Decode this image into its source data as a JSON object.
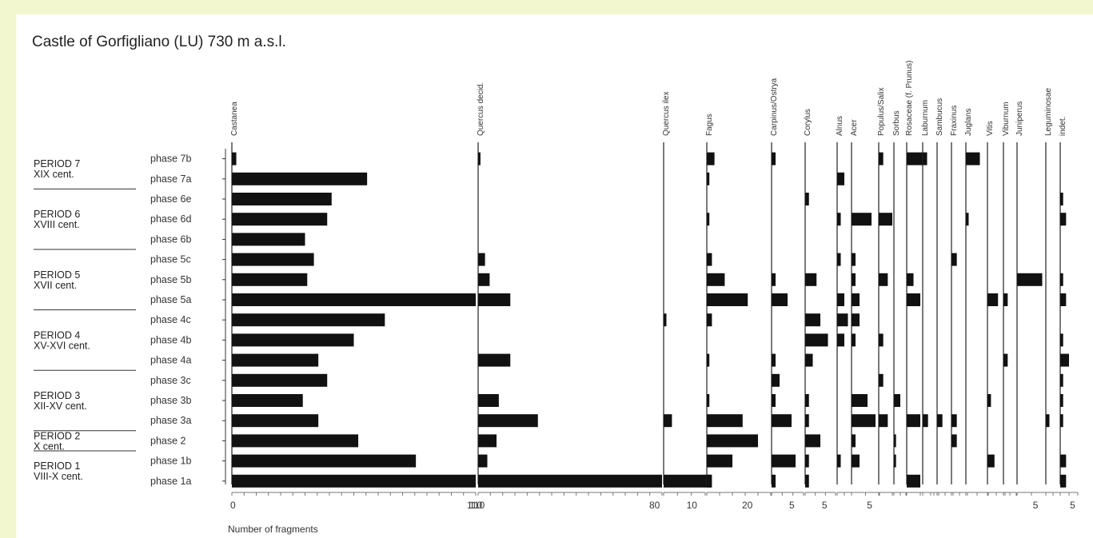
{
  "title": "Castle of Gorfigliano (LU) 730 m a.s.l.",
  "x_axis_title": "Number of fragments",
  "periods": [
    {
      "name": "PERIOD 7",
      "century": "XIX cent."
    },
    {
      "name": "PERIOD 6",
      "century": "XVIII cent."
    },
    {
      "name": "PERIOD 5",
      "century": "XVII cent."
    },
    {
      "name": "PERIOD 4",
      "century": "XV-XVI cent."
    },
    {
      "name": "PERIOD 3",
      "century": "XII-XV cent."
    },
    {
      "name": "PERIOD 2",
      "century": "X cent."
    },
    {
      "name": "PERIOD 1",
      "century": "VIII-X cent."
    }
  ],
  "chart_data": {
    "type": "bar",
    "orientation": "horizontal",
    "title": "Castle of Gorfigliano (LU) 730 m a.s.l.",
    "xlabel": "Number of fragments",
    "categories": [
      "phase 7b",
      "phase 7a",
      "phase 6e",
      "phase 6d",
      "phase 6b",
      "phase 5c",
      "phase 5b",
      "phase 5a",
      "phase 4c",
      "phase 4b",
      "phase 4a",
      "phase 3c",
      "phase 3b",
      "phase 3a",
      "phase 2",
      "phase 1b",
      "phase 1a"
    ],
    "series": [
      {
        "name": "Castanea",
        "max": 110,
        "ticks": [
          "0",
          "110"
        ],
        "values": [
          2,
          61,
          45,
          43,
          33,
          37,
          34,
          110,
          69,
          55,
          39,
          43,
          32,
          39,
          57,
          83,
          110
        ]
      },
      {
        "name": "Quercus decid.",
        "max": 80,
        "ticks": [
          "110",
          "80"
        ],
        "values": [
          1,
          0,
          0,
          0,
          0,
          3,
          5,
          14,
          0,
          0,
          14,
          0,
          9,
          26,
          8,
          4,
          80
        ]
      },
      {
        "name": "Quercus ilex",
        "max": 15,
        "ticks": [
          "10"
        ],
        "values": [
          0,
          0,
          0,
          0,
          0,
          0,
          0,
          0,
          1,
          0,
          0,
          0,
          0,
          3,
          0,
          0,
          17
        ]
      },
      {
        "name": "Fagus",
        "max": 25,
        "ticks": [
          "20"
        ],
        "values": [
          3,
          1,
          0,
          1,
          0,
          2,
          7,
          16,
          2,
          0,
          1,
          0,
          1,
          14,
          20,
          10,
          2
        ]
      },
      {
        "name": "Carpinus/Ostrya",
        "max": 8,
        "ticks": [
          "5"
        ],
        "values": [
          1,
          0,
          0,
          0,
          0,
          0,
          1,
          4,
          0,
          0,
          1,
          2,
          1,
          5,
          0,
          6,
          1
        ]
      },
      {
        "name": "Corylus",
        "max": 8,
        "ticks": [
          "5"
        ],
        "values": [
          0,
          0,
          1,
          0,
          0,
          0,
          3,
          0,
          4,
          6,
          2,
          0,
          1,
          1,
          4,
          1,
          1
        ]
      },
      {
        "name": "Alnus",
        "max": 4,
        "ticks": [],
        "values": [
          0,
          2,
          0,
          1,
          0,
          1,
          0,
          2,
          3,
          2,
          0,
          0,
          0,
          0,
          0,
          1,
          0
        ]
      },
      {
        "name": "Acer",
        "max": 7,
        "ticks": [
          "5"
        ],
        "values": [
          0,
          0,
          0,
          5,
          0,
          1,
          1,
          2,
          2,
          1,
          0,
          0,
          4,
          6,
          1,
          2,
          0
        ]
      },
      {
        "name": "Populus/Salix",
        "max": 6,
        "ticks": [],
        "values": [
          1,
          0,
          0,
          3,
          0,
          0,
          2,
          0,
          0,
          1,
          0,
          1,
          0,
          2,
          0,
          0,
          0
        ]
      },
      {
        "name": "Sorbus",
        "max": 6,
        "ticks": [],
        "values": [
          0,
          0,
          0,
          0,
          0,
          0,
          0,
          0,
          0,
          0,
          0,
          0,
          3,
          0,
          1,
          1,
          0
        ]
      },
      {
        "name": "Rosaceae (f. Prunus)",
        "max": 4,
        "ticks": [],
        "values": [
          3,
          0,
          0,
          0,
          0,
          0,
          1,
          2,
          0,
          0,
          0,
          0,
          0,
          2,
          0,
          0,
          2
        ]
      },
      {
        "name": "Laburnum",
        "max": 3,
        "ticks": [],
        "values": [
          0,
          0,
          0,
          0,
          0,
          0,
          0,
          0,
          0,
          0,
          0,
          0,
          0,
          1,
          0,
          0,
          0
        ]
      },
      {
        "name": "Sambucus",
        "max": 3,
        "ticks": [],
        "values": [
          0,
          0,
          0,
          0,
          0,
          0,
          0,
          0,
          0,
          0,
          0,
          0,
          0,
          1,
          0,
          0,
          0
        ]
      },
      {
        "name": "Fraxinus",
        "max": 3,
        "ticks": [],
        "values": [
          0,
          0,
          0,
          0,
          0,
          1,
          0,
          0,
          0,
          0,
          0,
          0,
          0,
          1,
          1,
          0,
          0
        ]
      },
      {
        "name": "Juglans",
        "max": 8,
        "ticks": [],
        "values": [
          5,
          0,
          0,
          1,
          0,
          0,
          0,
          0,
          0,
          0,
          0,
          0,
          0,
          0,
          0,
          0,
          0
        ]
      },
      {
        "name": "Vitis",
        "max": 5,
        "ticks": [],
        "values": [
          0,
          0,
          0,
          0,
          0,
          0,
          0,
          3,
          0,
          0,
          0,
          0,
          1,
          0,
          0,
          2,
          0
        ]
      },
      {
        "name": "Viburnum",
        "max": 3,
        "ticks": [],
        "values": [
          0,
          0,
          0,
          0,
          0,
          0,
          0,
          1,
          0,
          0,
          1,
          0,
          0,
          0,
          0,
          0,
          0
        ]
      },
      {
        "name": "Juniperus",
        "max": 8,
        "ticks": [
          "5"
        ],
        "values": [
          0,
          0,
          0,
          0,
          0,
          0,
          7,
          0,
          0,
          0,
          0,
          0,
          0,
          0,
          0,
          0,
          0
        ]
      },
      {
        "name": "Leguminosae",
        "max": 4,
        "ticks": [],
        "values": [
          0,
          0,
          0,
          0,
          0,
          0,
          0,
          0,
          0,
          0,
          0,
          0,
          0,
          1,
          0,
          0,
          0
        ]
      },
      {
        "name": "indet.",
        "max": 6,
        "ticks": [
          "5"
        ],
        "values": [
          0,
          0,
          1,
          2,
          0,
          0,
          1,
          2,
          0,
          1,
          3,
          1,
          1,
          1,
          0,
          2,
          2
        ]
      }
    ]
  }
}
